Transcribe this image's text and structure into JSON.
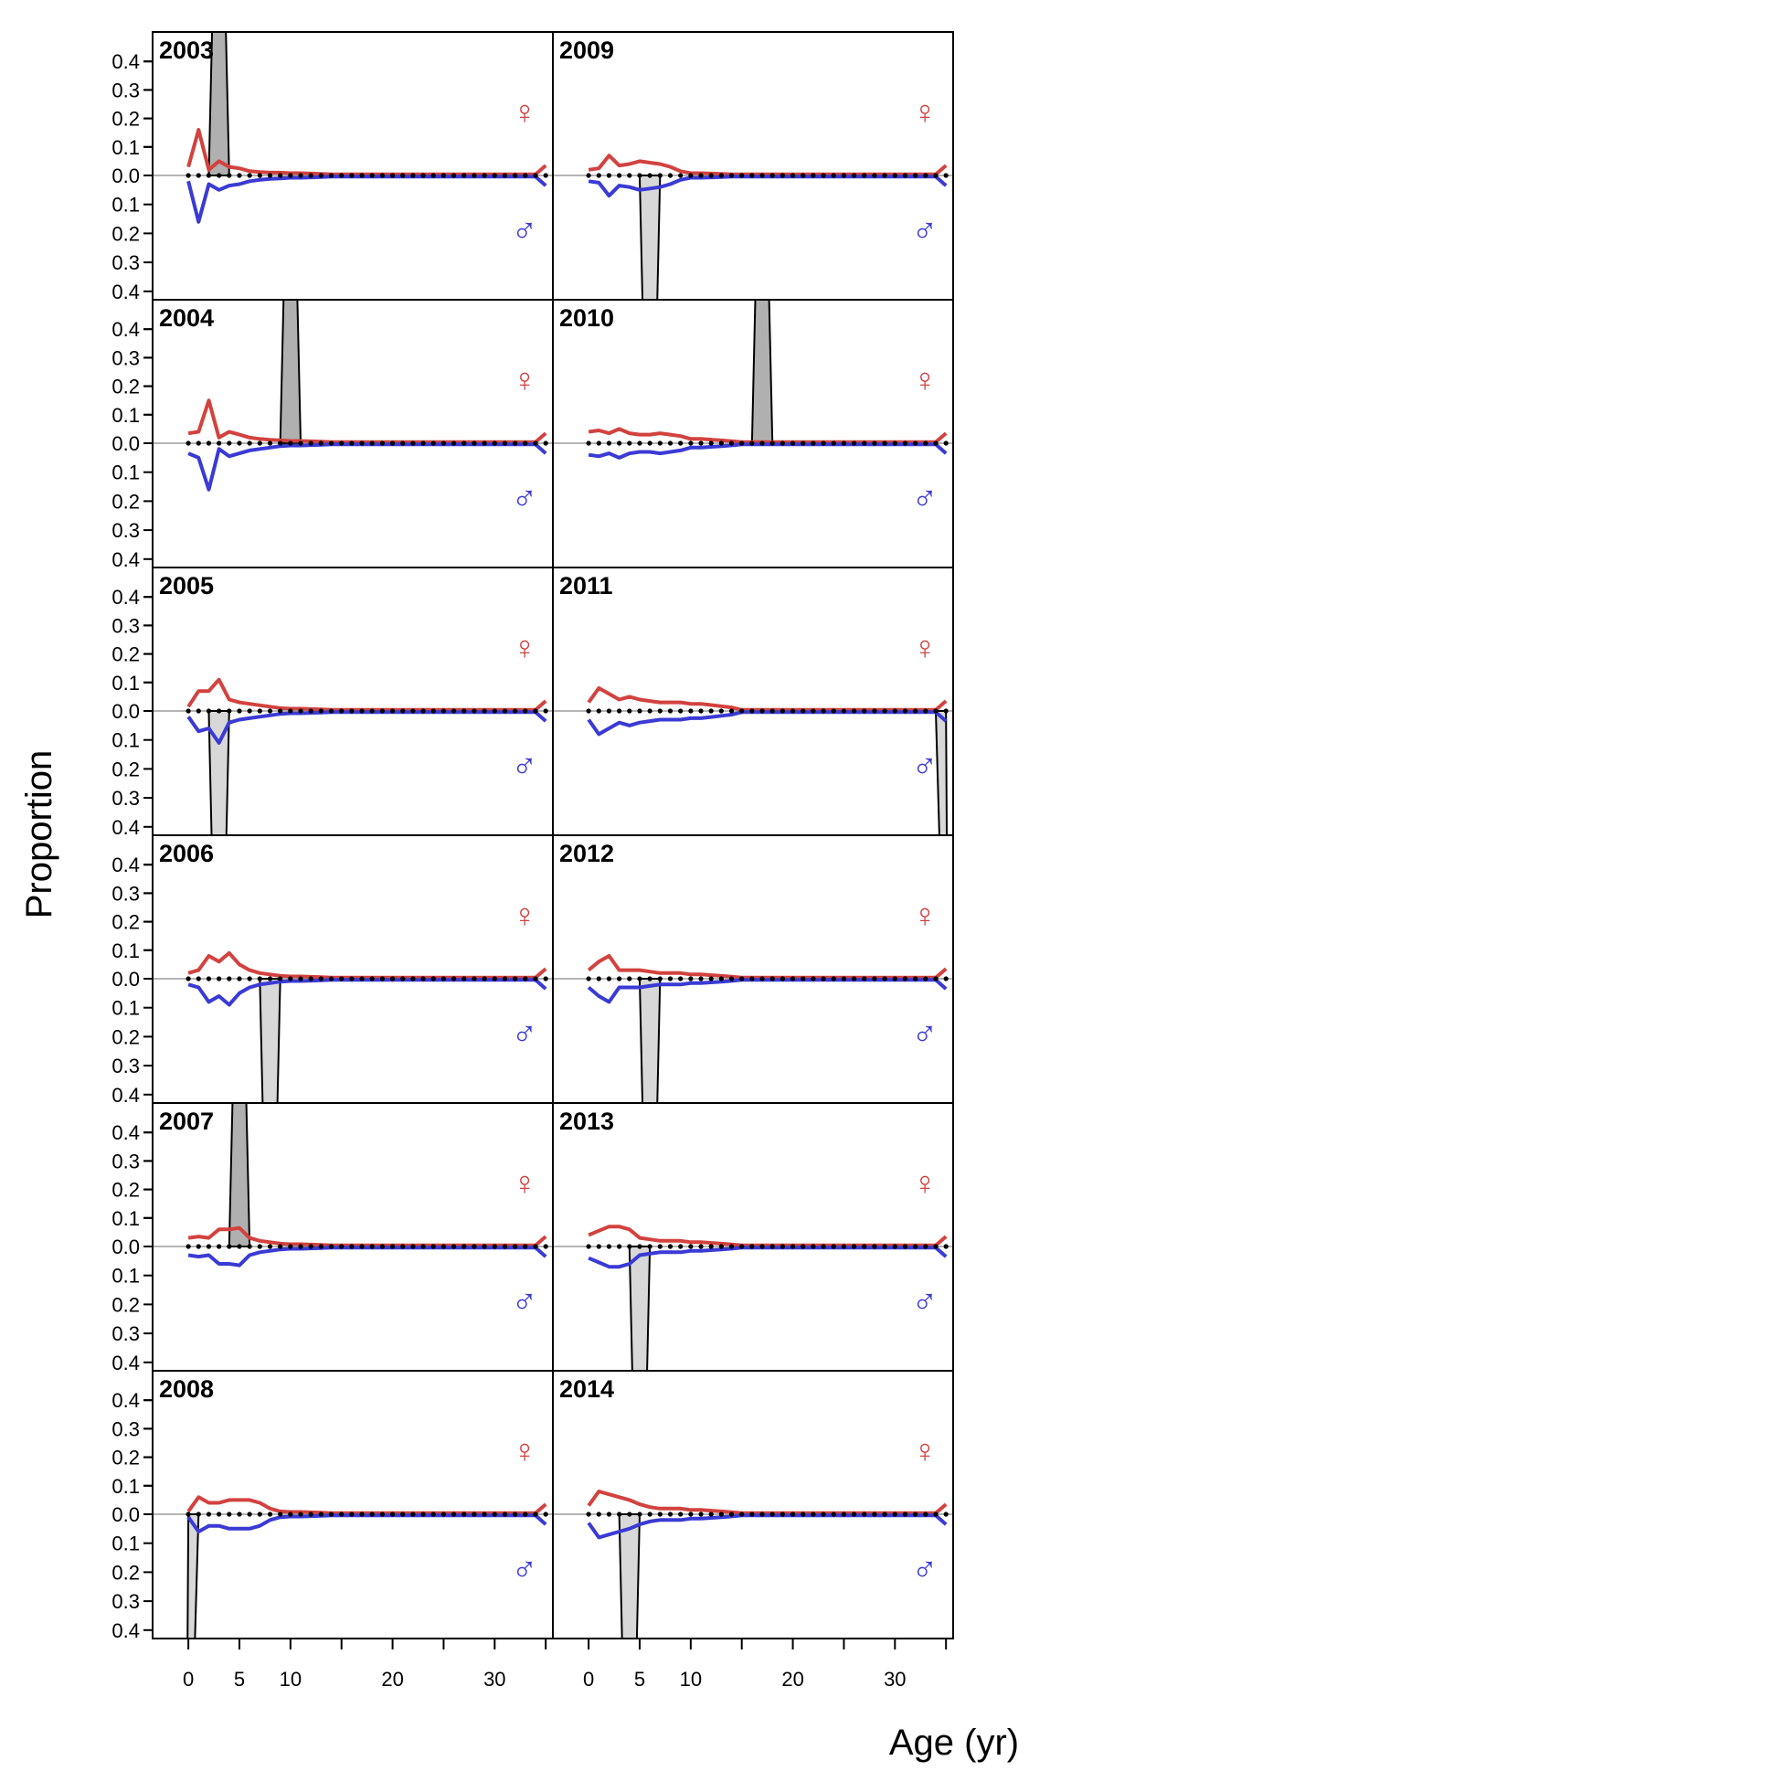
{
  "chart_data": {
    "type": "line",
    "xlabel": "Age (yr)",
    "ylabel": "Proportion",
    "x_ticks": [
      0,
      5,
      10,
      20,
      30
    ],
    "y_ticks": [
      0.0,
      0.1,
      0.2,
      0.3,
      0.4
    ],
    "ylim_female": [
      0,
      0.45
    ],
    "ylim_male": [
      0,
      0.42
    ],
    "xlim": [
      -3.5,
      35.7
    ],
    "max_age": 35,
    "colors": {
      "female": "#d2423f",
      "male": "#3a3ad5",
      "observed_female_fill": "#b0b0b0",
      "observed_male_fill": "#d8d8d8",
      "zero_line": "#b5b5b5",
      "observed_points": "#000000"
    },
    "sex_symbols": {
      "female": "♀",
      "male": "♂"
    },
    "panels": [
      {
        "year": "2003",
        "obs_side": "female",
        "obs_age": 3,
        "obs_value": 1.0,
        "female": [
          0.03,
          0.16,
          0.02,
          0.05,
          0.03,
          0.025,
          0.015,
          0.012,
          0.01,
          0.01,
          0.008
        ],
        "male": [
          0.02,
          0.16,
          0.03,
          0.05,
          0.035,
          0.03,
          0.02,
          0.015,
          0.012,
          0.01,
          0.008
        ]
      },
      {
        "year": "2004",
        "obs_side": "female",
        "obs_age": 10,
        "obs_value": 1.0,
        "female": [
          0.035,
          0.04,
          0.15,
          0.02,
          0.04,
          0.03,
          0.02,
          0.015,
          0.012,
          0.01,
          0.008
        ],
        "male": [
          0.035,
          0.05,
          0.16,
          0.02,
          0.045,
          0.035,
          0.025,
          0.02,
          0.015,
          0.01,
          0.008
        ]
      },
      {
        "year": "2005",
        "obs_side": "male",
        "obs_age": 3,
        "obs_value": 1.0,
        "female": [
          0.015,
          0.07,
          0.07,
          0.11,
          0.04,
          0.03,
          0.025,
          0.02,
          0.015,
          0.01,
          0.008
        ],
        "male": [
          0.02,
          0.07,
          0.06,
          0.11,
          0.04,
          0.03,
          0.025,
          0.02,
          0.015,
          0.01,
          0.008
        ]
      },
      {
        "year": "2006",
        "obs_side": "male",
        "obs_age": 8,
        "obs_value": 1.0,
        "female": [
          0.02,
          0.03,
          0.08,
          0.06,
          0.09,
          0.05,
          0.03,
          0.02,
          0.015,
          0.01,
          0.008
        ],
        "male": [
          0.02,
          0.03,
          0.08,
          0.06,
          0.09,
          0.05,
          0.03,
          0.02,
          0.015,
          0.01,
          0.008
        ]
      },
      {
        "year": "2007",
        "obs_side": "female",
        "obs_age": 5,
        "obs_value": 1.0,
        "female": [
          0.03,
          0.035,
          0.03,
          0.06,
          0.06,
          0.065,
          0.03,
          0.02,
          0.015,
          0.01,
          0.008
        ],
        "male": [
          0.03,
          0.035,
          0.03,
          0.06,
          0.06,
          0.065,
          0.03,
          0.02,
          0.015,
          0.01,
          0.008
        ]
      },
      {
        "year": "2008",
        "obs_side": "male",
        "obs_age": 0,
        "obs_value": 1.0,
        "female": [
          0.01,
          0.06,
          0.04,
          0.04,
          0.05,
          0.05,
          0.05,
          0.04,
          0.02,
          0.01,
          0.008
        ],
        "male": [
          0.01,
          0.06,
          0.04,
          0.04,
          0.05,
          0.05,
          0.05,
          0.04,
          0.02,
          0.01,
          0.008
        ]
      },
      {
        "year": "2009",
        "obs_side": "male",
        "obs_age": 6,
        "obs_value": 1.0,
        "female": [
          0.02,
          0.025,
          0.07,
          0.035,
          0.04,
          0.05,
          0.045,
          0.04,
          0.03,
          0.015,
          0.008
        ],
        "male": [
          0.02,
          0.025,
          0.07,
          0.035,
          0.04,
          0.05,
          0.045,
          0.04,
          0.03,
          0.015,
          0.008
        ]
      },
      {
        "year": "2010",
        "obs_side": "female",
        "obs_age": 17,
        "obs_value": 1.0,
        "female": [
          0.04,
          0.045,
          0.035,
          0.05,
          0.035,
          0.03,
          0.03,
          0.035,
          0.03,
          0.025,
          0.015
        ],
        "male": [
          0.04,
          0.045,
          0.035,
          0.05,
          0.035,
          0.03,
          0.03,
          0.035,
          0.03,
          0.025,
          0.015
        ]
      },
      {
        "year": "2011",
        "obs_side": "male",
        "obs_age": 35,
        "obs_value": 1.0,
        "female": [
          0.03,
          0.08,
          0.06,
          0.04,
          0.05,
          0.04,
          0.035,
          0.03,
          0.03,
          0.03,
          0.025
        ],
        "male": [
          0.03,
          0.08,
          0.06,
          0.04,
          0.05,
          0.04,
          0.035,
          0.03,
          0.03,
          0.03,
          0.025
        ]
      },
      {
        "year": "2012",
        "obs_side": "male",
        "obs_age": 6,
        "obs_value": 1.0,
        "female": [
          0.03,
          0.06,
          0.08,
          0.03,
          0.03,
          0.03,
          0.025,
          0.02,
          0.02,
          0.02,
          0.015
        ],
        "male": [
          0.03,
          0.06,
          0.08,
          0.03,
          0.03,
          0.03,
          0.025,
          0.02,
          0.02,
          0.02,
          0.015
        ]
      },
      {
        "year": "2013",
        "obs_side": "male",
        "obs_age": 5,
        "obs_value": 1.0,
        "female": [
          0.04,
          0.055,
          0.07,
          0.07,
          0.06,
          0.03,
          0.025,
          0.02,
          0.02,
          0.02,
          0.015
        ],
        "male": [
          0.04,
          0.055,
          0.07,
          0.07,
          0.06,
          0.03,
          0.025,
          0.02,
          0.02,
          0.02,
          0.015
        ]
      },
      {
        "year": "2014",
        "obs_side": "male",
        "obs_age": 4,
        "obs_value": 1.0,
        "female": [
          0.03,
          0.08,
          0.07,
          0.06,
          0.05,
          0.035,
          0.025,
          0.02,
          0.02,
          0.02,
          0.015
        ],
        "male": [
          0.03,
          0.08,
          0.07,
          0.06,
          0.05,
          0.035,
          0.025,
          0.02,
          0.02,
          0.02,
          0.015
        ]
      }
    ]
  }
}
